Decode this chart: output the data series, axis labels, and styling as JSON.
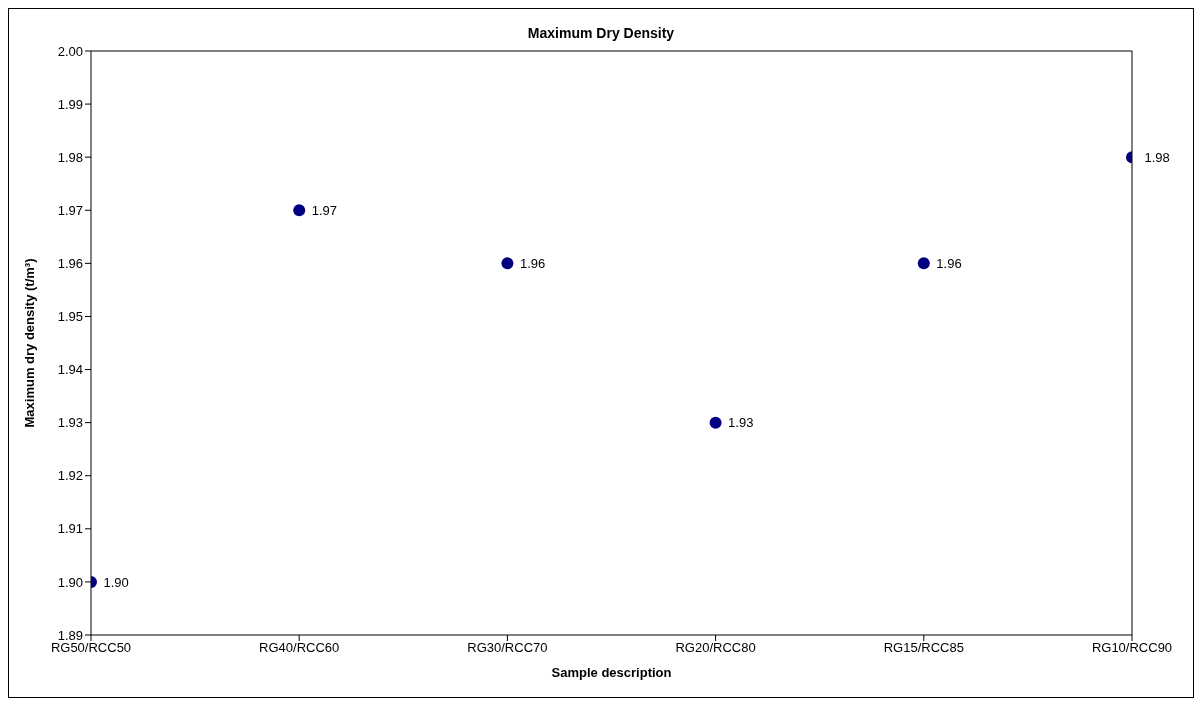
{
  "chart_data": {
    "type": "scatter",
    "title": "Maximum Dry Density",
    "xlabel": "Sample description",
    "ylabel": "Maximum dry density (t/m³)",
    "categories": [
      "RG50/RCC50",
      "RG40/RCC60",
      "RG30/RCC70",
      "RG20/RCC80",
      "RG15/RCC85",
      "RG10/RCC90"
    ],
    "values": [
      1.9,
      1.97,
      1.96,
      1.93,
      1.96,
      1.98
    ],
    "value_labels": [
      "1.90",
      "1.97",
      "1.96",
      "1.93",
      "1.96",
      "1.98"
    ],
    "color": "#000080",
    "marker": "circle",
    "ylim": [
      1.89,
      2.0
    ],
    "yticks": [
      {
        "value": 1.89,
        "label": "1.89"
      },
      {
        "value": 1.9,
        "label": "1.90"
      },
      {
        "value": 1.91,
        "label": "1.91"
      },
      {
        "value": 1.92,
        "label": "1.92"
      },
      {
        "value": 1.93,
        "label": "1.93"
      },
      {
        "value": 1.94,
        "label": "1.94"
      },
      {
        "value": 1.95,
        "label": "1.95"
      },
      {
        "value": 1.96,
        "label": "1.96"
      },
      {
        "value": 1.97,
        "label": "1.97"
      },
      {
        "value": 1.98,
        "label": "1.98"
      },
      {
        "value": 1.99,
        "label": "1.99"
      },
      {
        "value": 2.0,
        "label": "2.00"
      }
    ],
    "grid": false,
    "legend": false
  }
}
